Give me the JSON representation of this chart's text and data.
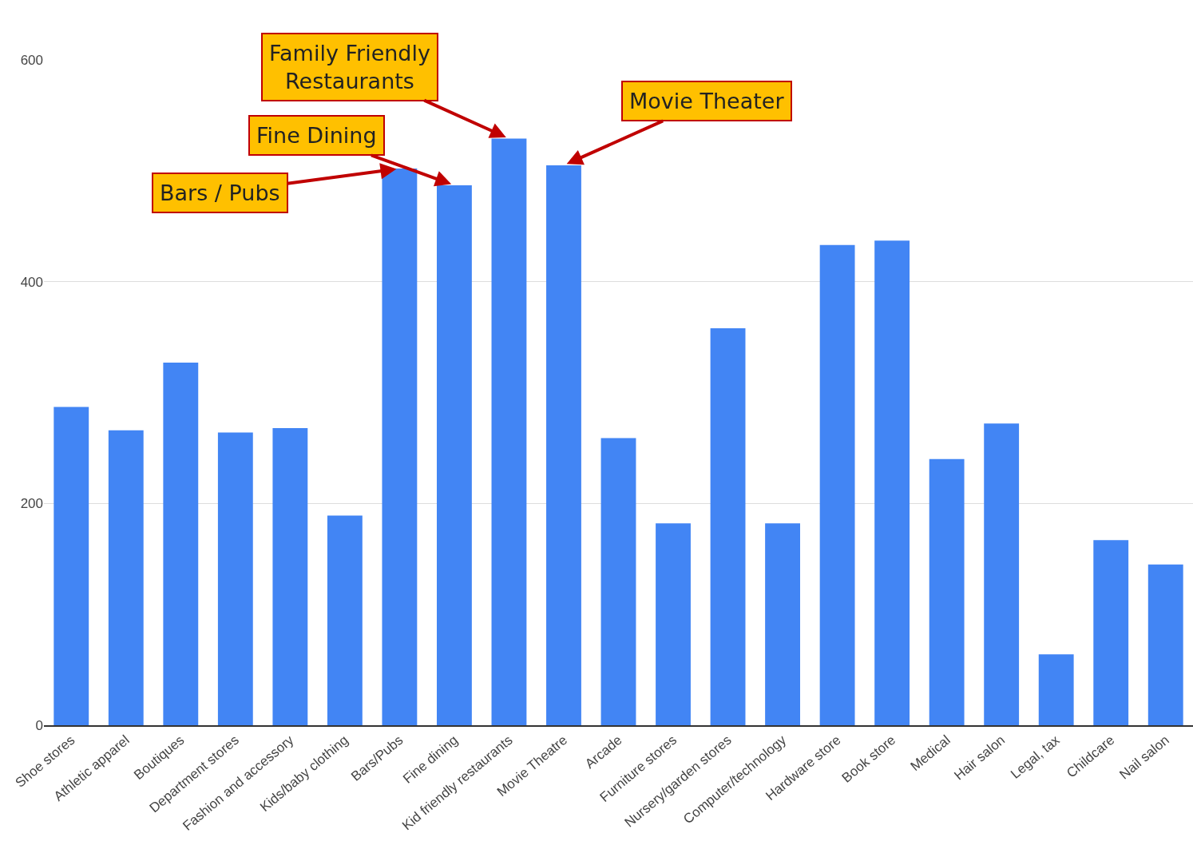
{
  "chart_data": {
    "type": "bar",
    "categories": [
      "Shoe stores",
      "Athletic apparel",
      "Boutiques",
      "Department stores",
      "Fashion and accessory",
      "Kids/baby clothing",
      "Bars/Pubs",
      "Fine dining",
      "Kid friendly restaurants",
      "Movie Theatre",
      "Arcade",
      "Furniture stores",
      "Nursery/garden stores",
      "Computer/technology",
      "Hardware store",
      "Book store",
      "Medical",
      "Hair salon",
      "Legal, tax",
      "Childcare",
      "Nail salon"
    ],
    "values": [
      287,
      266,
      327,
      264,
      268,
      189,
      502,
      487,
      529,
      505,
      259,
      182,
      358,
      182,
      433,
      437,
      240,
      272,
      64,
      167,
      145
    ],
    "color": "#4285f4",
    "ylim": [
      0,
      600
    ],
    "yticks": [
      0,
      200,
      400,
      600
    ],
    "grid": "y",
    "annotations": [
      {
        "text": "Bars / Pubs",
        "x": "Bars/Pubs",
        "y": 502
      },
      {
        "text": "Fine Dining",
        "x": "Fine dining",
        "y": 487
      },
      {
        "text": "Family Friendly\nRestaurants",
        "x": "Kid friendly restaurants",
        "y": 529
      },
      {
        "text": "Movie Theater",
        "x": "Movie Theatre",
        "y": 505
      }
    ]
  }
}
